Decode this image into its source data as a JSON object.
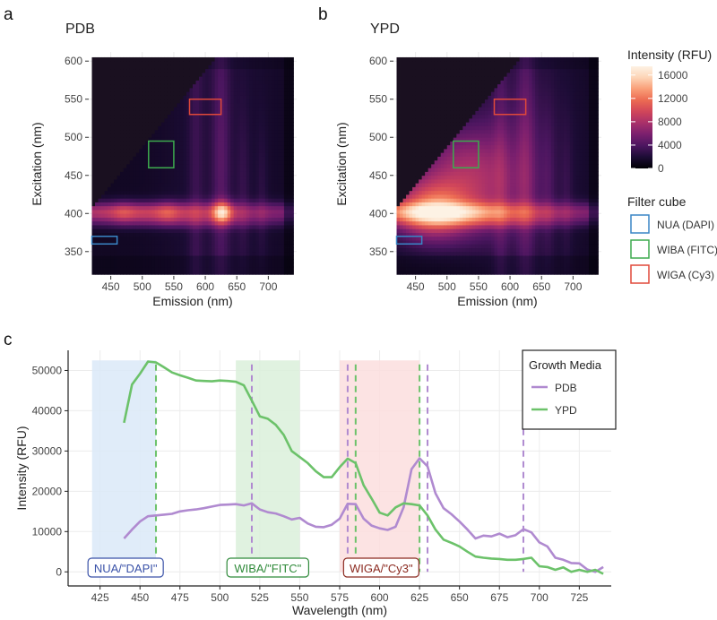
{
  "panel_labels": {
    "a": "a",
    "b": "b",
    "c": "c"
  },
  "heatmap_colorscale": [
    "#000004",
    "#1c0c35",
    "#4c1660",
    "#7a1f6e",
    "#a8306a",
    "#d0455a",
    "#ec6a52",
    "#f99e77",
    "#fdd4b6",
    "#fdf2e4"
  ],
  "filter_colors": {
    "NUA (DAPI)": "#3a86c6",
    "WIBA (FITC)": "#3daa4e",
    "WIGA (Cy3)": "#e0493a"
  },
  "series_colors": {
    "PDB": "#b08ad0",
    "YPD": "#6cc26a"
  },
  "band_colors": {
    "NUA": "#dbe9f8",
    "WIBA": "#dbf0da",
    "WIGA": "#fbdede"
  },
  "chart_data": [
    {
      "type": "heatmap",
      "title": "PDB",
      "xlabel": "Emission (nm)",
      "ylabel": "Excitation (nm)",
      "xticks": [
        450,
        500,
        550,
        600,
        650,
        700
      ],
      "yticks": [
        350,
        400,
        450,
        500,
        550,
        600
      ],
      "xlim": [
        415,
        745
      ],
      "ylim": [
        318,
        612
      ],
      "peak_intensity_rfu": 16000,
      "filter_boxes": [
        {
          "name": "NUA (DAPI)",
          "em": [
            420,
            460
          ],
          "ex": [
            360,
            370
          ]
        },
        {
          "name": "WIBA (FITC)",
          "em": [
            510,
            550
          ],
          "ex": [
            460,
            495
          ]
        },
        {
          "name": "WIGA (Cy3)",
          "em": [
            575,
            625
          ],
          "ex": [
            530,
            550
          ]
        }
      ]
    },
    {
      "type": "heatmap",
      "title": "YPD",
      "xlabel": "Emission (nm)",
      "ylabel": "Excitation (nm)",
      "xticks": [
        450,
        500,
        550,
        600,
        650,
        700
      ],
      "yticks": [
        350,
        400,
        450,
        500,
        550,
        600
      ],
      "xlim": [
        415,
        745
      ],
      "ylim": [
        318,
        612
      ],
      "peak_intensity_rfu": 16500,
      "filter_boxes": [
        {
          "name": "NUA (DAPI)",
          "em": [
            420,
            460
          ],
          "ex": [
            360,
            370
          ]
        },
        {
          "name": "WIBA (FITC)",
          "em": [
            510,
            550
          ],
          "ex": [
            460,
            495
          ]
        },
        {
          "name": "WIGA (Cy3)",
          "em": [
            575,
            625
          ],
          "ex": [
            530,
            550
          ]
        }
      ]
    },
    {
      "type": "line",
      "xlabel": "Wavelength (nm)",
      "ylabel": "Intensity (RFU)",
      "xlim": [
        405,
        745
      ],
      "ylim": [
        -3500,
        55000
      ],
      "xticks": [
        425,
        450,
        475,
        500,
        525,
        550,
        575,
        600,
        625,
        650,
        675,
        700,
        725
      ],
      "yticks": [
        0,
        10000,
        20000,
        30000,
        40000,
        50000
      ],
      "bands": [
        {
          "name": "NUA",
          "label": "NUA/\"DAPI\"",
          "range": [
            420,
            460
          ],
          "label_x": 441
        },
        {
          "name": "WIBA",
          "label": "WIBA/\"FITC\"",
          "range": [
            510,
            550
          ],
          "label_x": 530
        },
        {
          "name": "WIGA",
          "label": "WIGA/\"Cy3\"",
          "range": [
            575,
            625
          ],
          "label_x": 601
        }
      ],
      "series": [
        {
          "name": "PDB",
          "x": [
            440,
            445,
            450,
            455,
            460,
            465,
            470,
            475,
            480,
            485,
            490,
            495,
            500,
            505,
            510,
            515,
            520,
            525,
            530,
            535,
            540,
            545,
            550,
            555,
            560,
            565,
            570,
            575,
            580,
            585,
            590,
            595,
            600,
            605,
            610,
            615,
            620,
            625,
            630,
            635,
            640,
            645,
            650,
            655,
            660,
            665,
            670,
            675,
            680,
            685,
            690,
            695,
            700,
            705,
            710,
            715,
            720,
            725,
            730,
            735,
            740
          ],
          "y": [
            8300,
            10500,
            12500,
            13800,
            14000,
            14200,
            14400,
            15000,
            15300,
            15500,
            15800,
            16200,
            16600,
            16700,
            16800,
            16500,
            17000,
            15500,
            14800,
            14500,
            13800,
            13000,
            13400,
            12000,
            11200,
            11100,
            11700,
            13200,
            16900,
            16800,
            13200,
            11500,
            10800,
            10400,
            11200,
            16000,
            25500,
            28200,
            26200,
            19500,
            15800,
            14300,
            12500,
            10500,
            8300,
            9000,
            8800,
            9500,
            8600,
            9100,
            10600,
            9800,
            7300,
            6300,
            3500,
            3000,
            2200,
            2100,
            600,
            0,
            1200
          ]
        },
        {
          "name": "YPD",
          "x": [
            440,
            445,
            450,
            455,
            460,
            465,
            470,
            475,
            480,
            485,
            490,
            495,
            500,
            505,
            510,
            515,
            520,
            525,
            530,
            535,
            540,
            545,
            550,
            555,
            560,
            565,
            570,
            575,
            580,
            585,
            590,
            595,
            600,
            605,
            610,
            615,
            620,
            625,
            630,
            635,
            640,
            645,
            650,
            655,
            660,
            665,
            670,
            675,
            680,
            685,
            690,
            695,
            700,
            705,
            710,
            715,
            720,
            725,
            730,
            735,
            740
          ],
          "y": [
            37000,
            46500,
            49200,
            52200,
            52000,
            50800,
            49500,
            48800,
            48200,
            47500,
            47400,
            47300,
            47500,
            47400,
            47200,
            46300,
            42500,
            38600,
            38000,
            36500,
            34000,
            30000,
            28500,
            27000,
            25000,
            23500,
            23500,
            26000,
            28100,
            27000,
            21500,
            18200,
            14700,
            14000,
            16000,
            17000,
            16800,
            16500,
            14000,
            10500,
            8000,
            7200,
            6300,
            5000,
            3800,
            3500,
            3300,
            3200,
            3000,
            3000,
            3200,
            3500,
            1400,
            1200,
            500,
            1100,
            0,
            500,
            0,
            500,
            -500
          ]
        }
      ],
      "markers": {
        "PDB": [
          520,
          580,
          630,
          690
        ],
        "YPD": [
          460,
          585,
          625
        ]
      }
    }
  ],
  "colorbar": {
    "title": "Intensity (RFU)",
    "max": 17500,
    "ticks": [
      {
        "value": 16000,
        "label": "16000"
      },
      {
        "value": 12000,
        "label": "12000"
      },
      {
        "value": 8000,
        "label": "8000"
      },
      {
        "value": 4000,
        "label": "4000"
      },
      {
        "value": 0,
        "label": "0"
      }
    ]
  },
  "filter_legend": {
    "title": "Filter cube",
    "items": [
      "NUA (DAPI)",
      "WIBA (FITC)",
      "WIGA (Cy3)"
    ]
  },
  "growth_legend": {
    "title": "Growth Media",
    "items": [
      "PDB",
      "YPD"
    ]
  }
}
